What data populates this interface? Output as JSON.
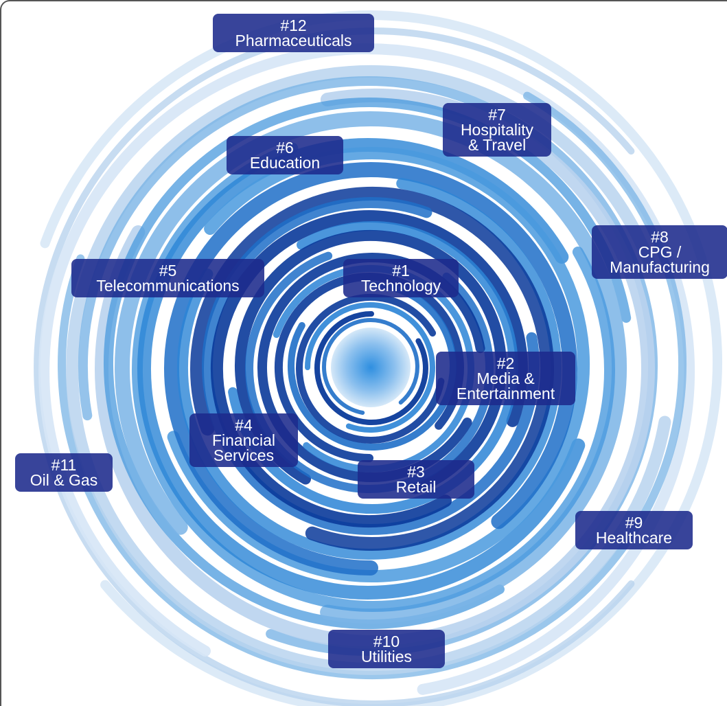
{
  "industries": [
    {
      "rank": "#1",
      "lines": [
        "Technology"
      ]
    },
    {
      "rank": "#2",
      "lines": [
        "Media &",
        "Entertainment"
      ]
    },
    {
      "rank": "#3",
      "lines": [
        "Retail"
      ]
    },
    {
      "rank": "#4",
      "lines": [
        "Financial",
        "Services"
      ]
    },
    {
      "rank": "#5",
      "lines": [
        "Telecommunications"
      ]
    },
    {
      "rank": "#6",
      "lines": [
        "Education"
      ]
    },
    {
      "rank": "#7",
      "lines": [
        "Hospitality",
        "& Travel"
      ]
    },
    {
      "rank": "#8",
      "lines": [
        "CPG /",
        "Manufacturing"
      ]
    },
    {
      "rank": "#9",
      "lines": [
        "Healthcare"
      ]
    },
    {
      "rank": "#10",
      "lines": [
        "Utilities"
      ]
    },
    {
      "rank": "#11",
      "lines": [
        "Oil & Gas"
      ]
    },
    {
      "rank": "#12",
      "lines": [
        "Pharmaceuticals"
      ]
    }
  ],
  "colors": {
    "label_bg": "#1c2a8c",
    "spiral_dark": "#0a3a9a",
    "spiral_mid": "#1f6fc8",
    "spiral_light": "#b9d3ee",
    "center": "#3a9ae0"
  }
}
